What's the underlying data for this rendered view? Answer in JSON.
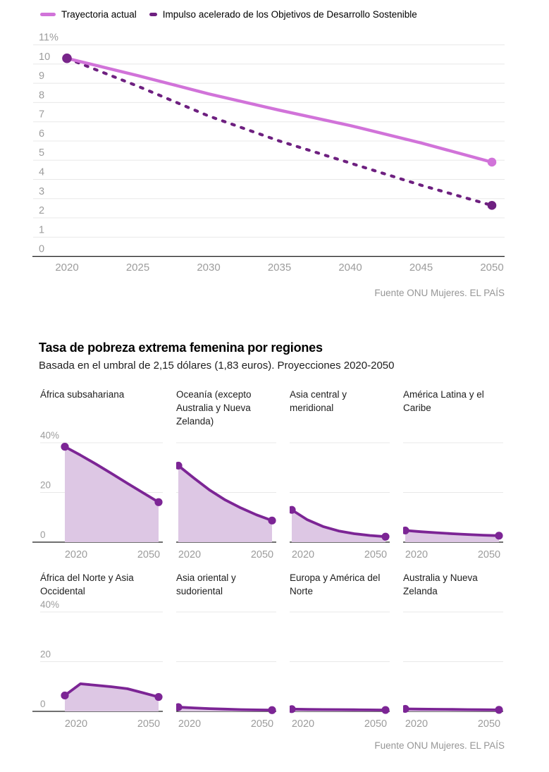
{
  "colors": {
    "trajectory_line": "#d173d9",
    "sdg_line": "#6e2080",
    "start_dot": "#78258a",
    "region_line": "#7c2595",
    "region_area": "#ddc7e4",
    "gridline": "#e8e8e8",
    "axis": "#1a1a1a",
    "tick_text": "#9c9c9c",
    "source_text": "#969696"
  },
  "legend": {
    "items": [
      {
        "label": "Trayectoria actual",
        "style": "solid"
      },
      {
        "label": "Impulso acelerado de los Objetivos de Desarrollo Sostenible",
        "style": "dashed"
      }
    ]
  },
  "source_top": "Fuente ONU Mujeres. EL PAÍS",
  "section": {
    "title": "Tasa de pobreza extrema femenina por regiones",
    "subtitle": "Basada en el umbral de 2,15 dólares (1,83 euros). Proyecciones 2020-2050"
  },
  "source_bottom": "Fuente ONU Mujeres. EL PAÍS",
  "chart_data": [
    {
      "id": "global-trajectory",
      "type": "line",
      "title": "",
      "xlabel": "",
      "ylabel": "",
      "x": [
        2020,
        2025,
        2030,
        2035,
        2040,
        2045,
        2050
      ],
      "series": [
        {
          "name": "Trayectoria actual",
          "style": "solid",
          "values": [
            10.3,
            9.4,
            8.45,
            7.6,
            6.8,
            5.9,
            4.9
          ]
        },
        {
          "name": "Impulso acelerado de los Objetivos de Desarrollo Sostenible",
          "style": "dashed",
          "values": [
            10.3,
            8.85,
            7.3,
            6.0,
            4.85,
            3.7,
            2.65
          ]
        }
      ],
      "ylim": [
        0,
        11
      ],
      "yticks": [
        [
          11,
          "11%"
        ],
        [
          10,
          "10"
        ],
        [
          9,
          "9"
        ],
        [
          8,
          "8"
        ],
        [
          7,
          "7"
        ],
        [
          6,
          "6"
        ],
        [
          5,
          "5"
        ],
        [
          4,
          "4"
        ],
        [
          3,
          "3"
        ],
        [
          2,
          "2"
        ],
        [
          1,
          "1"
        ],
        [
          0,
          "0"
        ]
      ],
      "xticks": [
        [
          2020,
          "2020"
        ],
        [
          2025,
          "2025"
        ],
        [
          2030,
          "2030"
        ],
        [
          2035,
          "2035"
        ],
        [
          2040,
          "2040"
        ],
        [
          2045,
          "2045"
        ],
        [
          2050,
          "2050"
        ]
      ],
      "grid": true,
      "legend_position": "top"
    },
    {
      "id": "regions-small-multiples",
      "type": "area",
      "x": [
        2020,
        2025,
        2030,
        2035,
        2040,
        2045,
        2050
      ],
      "ylim": [
        0,
        40
      ],
      "yticks": [
        [
          40,
          "40%"
        ],
        [
          20,
          "20"
        ],
        [
          0,
          "0"
        ]
      ],
      "xticks": [
        [
          2020,
          "2020"
        ],
        [
          2050,
          "2050"
        ]
      ],
      "grid": true,
      "panels": [
        {
          "title": "África subsahariana",
          "values": [
            38.4,
            35.0,
            31.4,
            27.6,
            23.7,
            19.9,
            16.1
          ]
        },
        {
          "title": "Oceanía (excepto Australia y Nueva Zelanda)",
          "values": [
            30.8,
            25.8,
            21.0,
            17.0,
            13.8,
            11.0,
            8.7
          ]
        },
        {
          "title": "Asia central y meridional",
          "values": [
            13.0,
            9.0,
            6.3,
            4.5,
            3.4,
            2.7,
            2.2
          ]
        },
        {
          "title": "América Latina y el Caribe",
          "values": [
            4.7,
            4.2,
            3.8,
            3.4,
            3.1,
            2.8,
            2.6
          ]
        },
        {
          "title": "África del Norte y Asia Occidental",
          "values": [
            6.4,
            11.1,
            10.5,
            9.9,
            9.1,
            7.5,
            5.8
          ]
        },
        {
          "title": "Asia oriental y sudoriental",
          "values": [
            1.7,
            1.4,
            1.1,
            0.9,
            0.7,
            0.6,
            0.5
          ]
        },
        {
          "title": "Europa y América del Norte",
          "values": [
            0.9,
            0.8,
            0.75,
            0.7,
            0.65,
            0.6,
            0.55
          ]
        },
        {
          "title": "Australia y Nueva Zelanda",
          "values": [
            1.0,
            0.9,
            0.85,
            0.8,
            0.7,
            0.65,
            0.6
          ]
        }
      ]
    }
  ]
}
